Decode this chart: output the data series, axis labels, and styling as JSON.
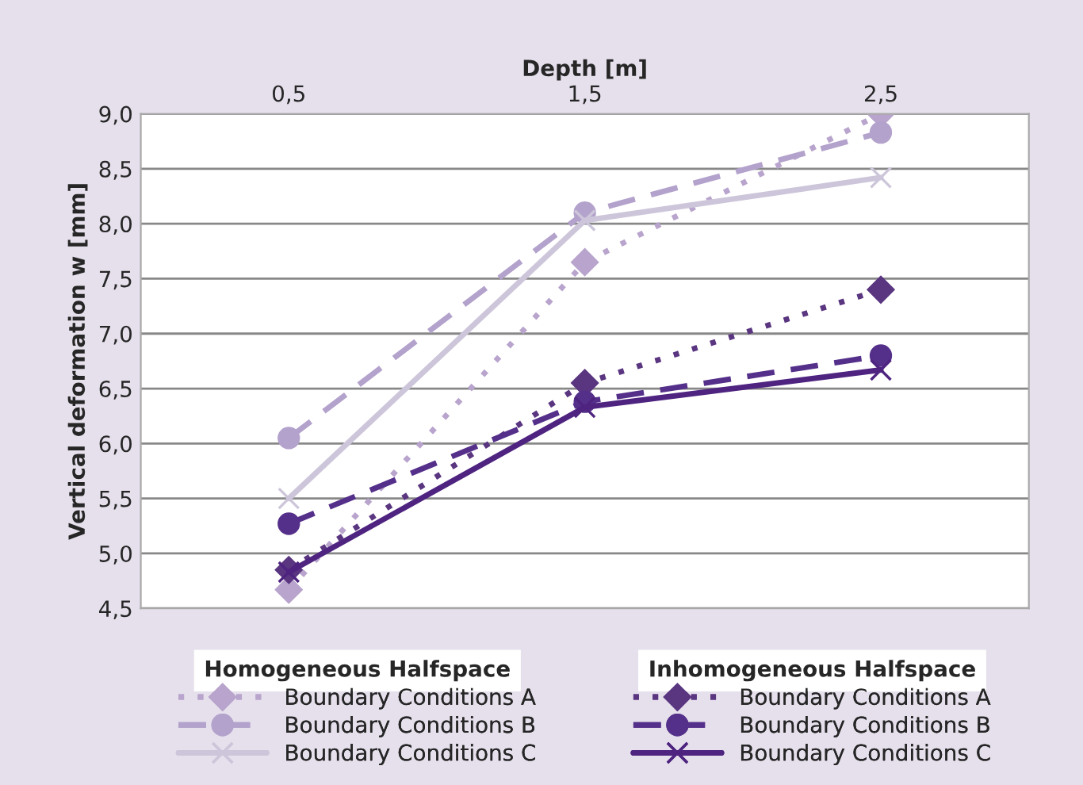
{
  "chart_data": {
    "type": "line",
    "xlabel": "Depth [m]",
    "ylabel": "Vertical deformation w [mm]",
    "categories": [
      "0,5",
      "1,5",
      "2,5"
    ],
    "ylim": [
      4.5,
      9.0
    ],
    "yticks": [
      {
        "value": 4.5,
        "label": "4,5"
      },
      {
        "value": 5.0,
        "label": "5,0"
      },
      {
        "value": 5.5,
        "label": "5,5"
      },
      {
        "value": 6.0,
        "label": "6,0"
      },
      {
        "value": 6.5,
        "label": "6,5"
      },
      {
        "value": 7.0,
        "label": "7,0"
      },
      {
        "value": 7.5,
        "label": "7,5"
      },
      {
        "value": 8.0,
        "label": "8,0"
      },
      {
        "value": 8.5,
        "label": "8,5"
      },
      {
        "value": 9.0,
        "label": "9,0"
      }
    ],
    "grid": "y",
    "legend": "bottom",
    "annotations": [
      "Homogeneous Halfspace",
      "Inhomogeneous Halfspace"
    ],
    "series": [
      {
        "name": "Boundary Conditions A",
        "color": "#b8a4cc",
        "marker": "diamond",
        "line_style": "dotted",
        "values": [
          4.67,
          7.65,
          9.0
        ]
      },
      {
        "name": "Boundary Conditions B",
        "color": "#b3a2cc",
        "marker": "circle",
        "line_style": "dashed",
        "values": [
          6.05,
          8.1,
          8.83
        ]
      },
      {
        "name": "Boundary Conditions C",
        "color": "#cdc6da",
        "marker": "cross",
        "line_style": "solid",
        "values": [
          5.5,
          8.03,
          8.42
        ]
      },
      {
        "name": "Boundary Conditions A",
        "color": "#5a3580",
        "marker": "diamond",
        "line_style": "dotted",
        "values": [
          4.85,
          6.55,
          7.4
        ]
      },
      {
        "name": "Boundary Conditions B",
        "color": "#55308a",
        "marker": "circle",
        "line_style": "dashed",
        "values": [
          5.27,
          6.38,
          6.8
        ]
      },
      {
        "name": "Boundary Conditions C",
        "color": "#4e2480",
        "marker": "cross",
        "line_style": "solid",
        "values": [
          4.83,
          6.33,
          6.67
        ]
      }
    ]
  }
}
